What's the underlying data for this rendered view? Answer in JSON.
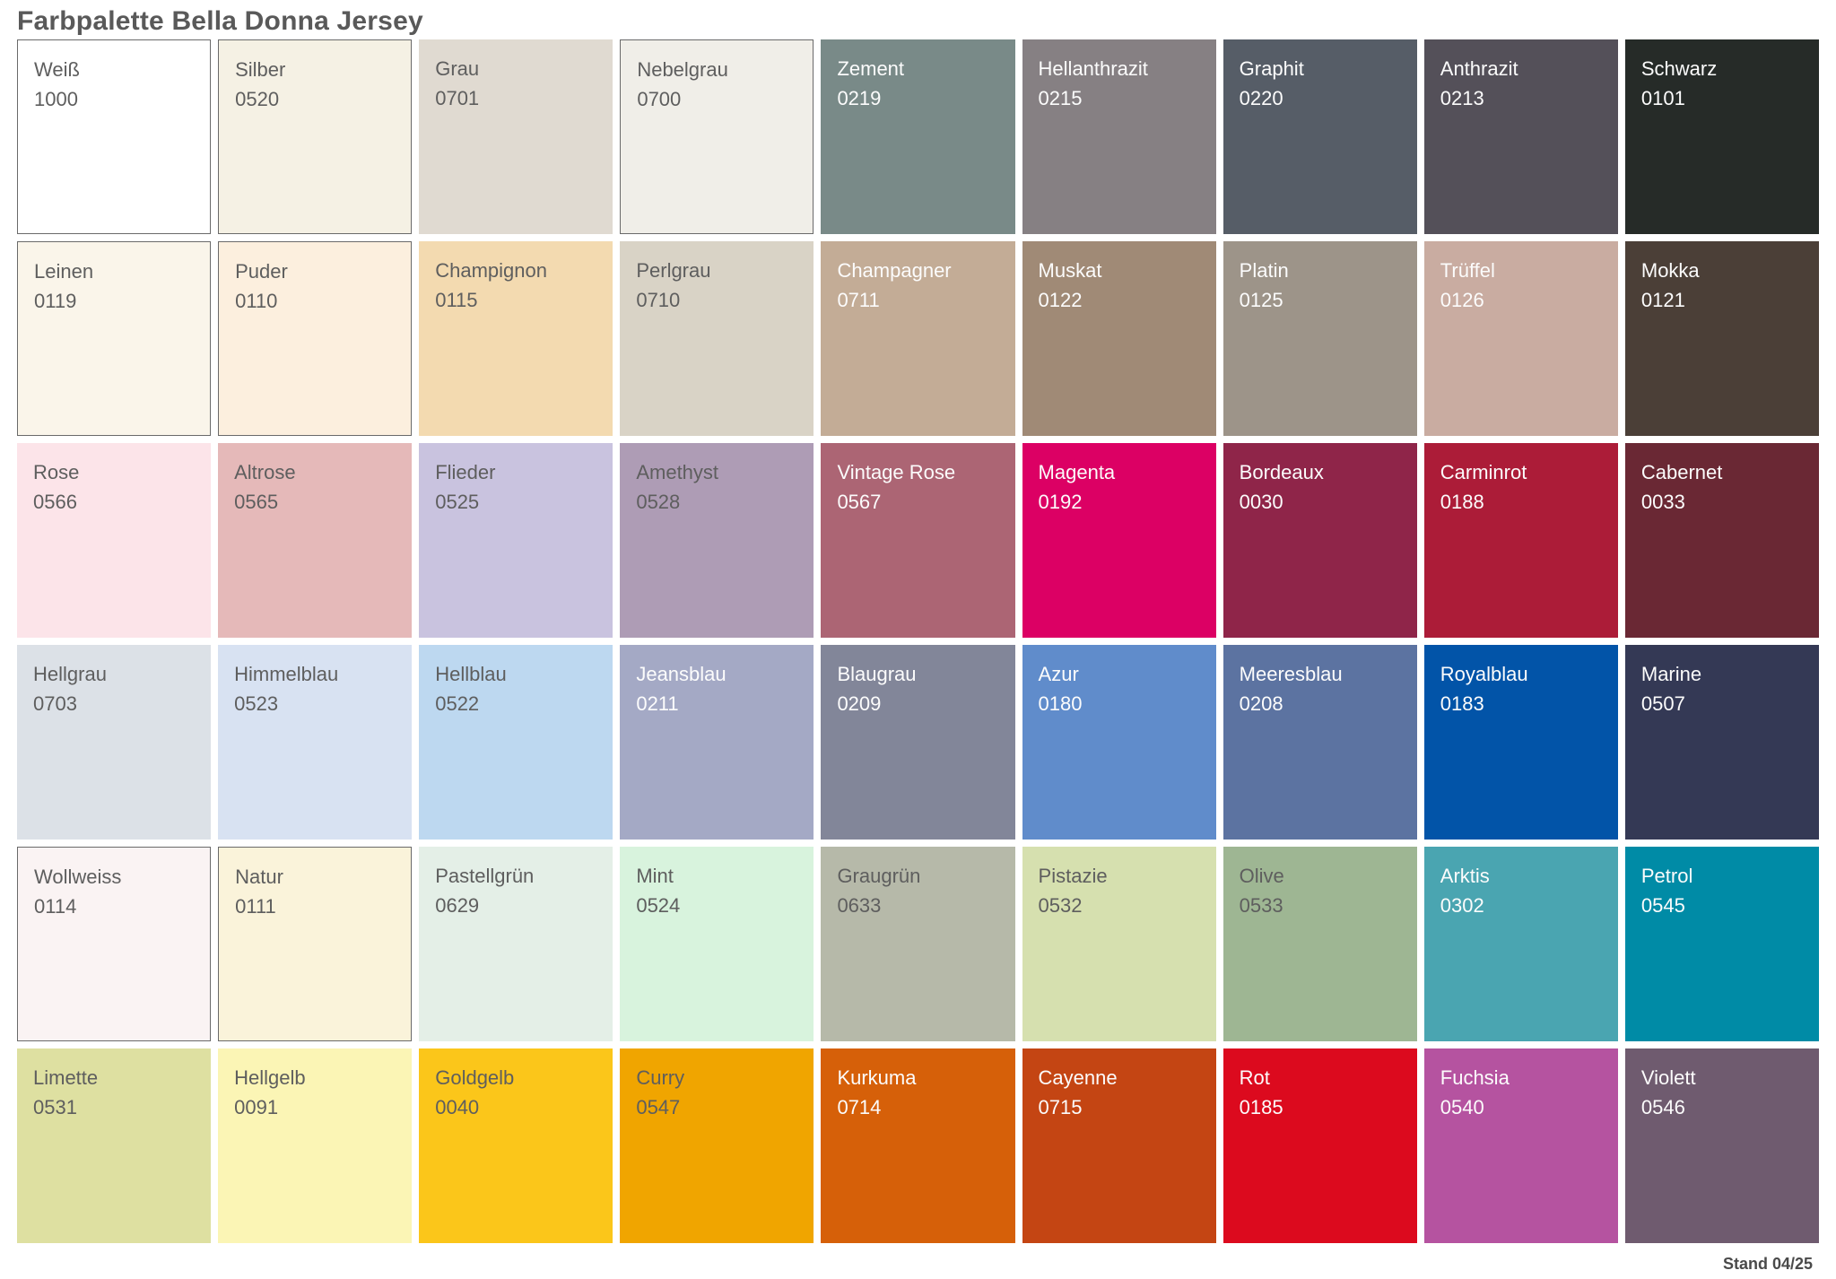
{
  "title": "Farbpalette Bella Donna Jersey",
  "footer": "Stand 04/25",
  "palette": {
    "columns": 9,
    "rows": 6,
    "label_dark_color": "#5E5E5E",
    "label_light_color": "#FCFCFC",
    "border_color": "#6A6A6A"
  },
  "swatches": [
    {
      "name": "Weiß",
      "code": "1000",
      "color": "#FFFFFF",
      "label": "dark",
      "border": true
    },
    {
      "name": "Silber",
      "code": "0520",
      "color": "#F5F1E4",
      "label": "dark",
      "border": true
    },
    {
      "name": "Grau",
      "code": "0701",
      "color": "#E0DAD1",
      "label": "dark",
      "border": false
    },
    {
      "name": "Nebelgrau",
      "code": "0700",
      "color": "#F0EEE8",
      "label": "dark",
      "border": true
    },
    {
      "name": "Zement",
      "code": "0219",
      "color": "#798A88",
      "label": "light",
      "border": false
    },
    {
      "name": "Hellanthrazit",
      "code": "0215",
      "color": "#868083",
      "label": "light",
      "border": false
    },
    {
      "name": "Graphit",
      "code": "0220",
      "color": "#565D67",
      "label": "light",
      "border": false
    },
    {
      "name": "Anthrazit",
      "code": "0213",
      "color": "#545059",
      "label": "light",
      "border": false
    },
    {
      "name": "Schwarz",
      "code": "0101",
      "color": "#262B28",
      "label": "light",
      "border": false
    },
    {
      "name": "Leinen",
      "code": "0119",
      "color": "#FAF5EA",
      "label": "dark",
      "border": true
    },
    {
      "name": "Puder",
      "code": "0110",
      "color": "#FCEFDE",
      "label": "dark",
      "border": true
    },
    {
      "name": "Champignon",
      "code": "0115",
      "color": "#F3DAB0",
      "label": "dark",
      "border": false
    },
    {
      "name": "Perlgrau",
      "code": "0710",
      "color": "#D9D3C6",
      "label": "dark",
      "border": false
    },
    {
      "name": "Champagner",
      "code": "0711",
      "color": "#C3AC96",
      "label": "light",
      "border": false
    },
    {
      "name": "Muskat",
      "code": "0122",
      "color": "#A08A76",
      "label": "light",
      "border": false
    },
    {
      "name": "Platin",
      "code": "0125",
      "color": "#9D9489",
      "label": "light",
      "border": false
    },
    {
      "name": "Trüffel",
      "code": "0126",
      "color": "#C9ACA1",
      "label": "light",
      "border": false
    },
    {
      "name": "Mokka",
      "code": "0121",
      "color": "#4B3F37",
      "label": "light",
      "border": false
    },
    {
      "name": "Rose",
      "code": "0566",
      "color": "#FCE4E9",
      "label": "dark",
      "border": false
    },
    {
      "name": "Altrose",
      "code": "0565",
      "color": "#E5B9B9",
      "label": "dark",
      "border": false
    },
    {
      "name": "Flieder",
      "code": "0525",
      "color": "#C9C3DF",
      "label": "dark",
      "border": false
    },
    {
      "name": "Amethyst",
      "code": "0528",
      "color": "#AE9CB5",
      "label": "dark",
      "border": false
    },
    {
      "name": "Vintage Rose",
      "code": "0567",
      "color": "#AC6574",
      "label": "light",
      "border": false
    },
    {
      "name": "Magenta",
      "code": "0192",
      "color": "#DC0064",
      "label": "light",
      "border": false
    },
    {
      "name": "Bordeaux",
      "code": "0030",
      "color": "#8F2549",
      "label": "light",
      "border": false
    },
    {
      "name": "Carminrot",
      "code": "0188",
      "color": "#AC1C38",
      "label": "light",
      "border": false
    },
    {
      "name": "Cabernet",
      "code": "0033",
      "color": "#6A2834",
      "label": "light",
      "border": false
    },
    {
      "name": "Hellgrau",
      "code": "0703",
      "color": "#DCE1E7",
      "label": "dark",
      "border": false
    },
    {
      "name": "Himmelblau",
      "code": "0523",
      "color": "#D8E2F2",
      "label": "dark",
      "border": false
    },
    {
      "name": "Hellblau",
      "code": "0522",
      "color": "#BDD8F0",
      "label": "dark",
      "border": false
    },
    {
      "name": "Jeansblau",
      "code": "0211",
      "color": "#A4A9C5",
      "label": "light",
      "border": false
    },
    {
      "name": "Blaugrau",
      "code": "0209",
      "color": "#828699",
      "label": "light",
      "border": false
    },
    {
      "name": "Azur",
      "code": "0180",
      "color": "#608CCB",
      "label": "light",
      "border": false
    },
    {
      "name": "Meeresblau",
      "code": "0208",
      "color": "#5C73A1",
      "label": "light",
      "border": false
    },
    {
      "name": "Royalblau",
      "code": "0183",
      "color": "#0254A8",
      "label": "light",
      "border": false
    },
    {
      "name": "Marine",
      "code": "0507",
      "color": "#343955",
      "label": "light",
      "border": false
    },
    {
      "name": "Wollweiss",
      "code": "0114",
      "color": "#FAF3F3",
      "label": "dark",
      "border": true
    },
    {
      "name": "Natur",
      "code": "0111",
      "color": "#FAF3DA",
      "label": "dark",
      "border": true
    },
    {
      "name": "Pastellgrün",
      "code": "0629",
      "color": "#E4EFE7",
      "label": "dark",
      "border": false
    },
    {
      "name": "Mint",
      "code": "0524",
      "color": "#D8F3DD",
      "label": "dark",
      "border": false
    },
    {
      "name": "Graugrün",
      "code": "0633",
      "color": "#B6B9A9",
      "label": "dark",
      "border": false
    },
    {
      "name": "Pistazie",
      "code": "0532",
      "color": "#D6E0AF",
      "label": "dark",
      "border": false
    },
    {
      "name": "Olive",
      "code": "0533",
      "color": "#9EB693",
      "label": "dark",
      "border": false
    },
    {
      "name": "Arktis",
      "code": "0302",
      "color": "#4AA5B1",
      "label": "light",
      "border": false
    },
    {
      "name": "Petrol",
      "code": "0545",
      "color": "#008BA6",
      "label": "light",
      "border": false
    },
    {
      "name": "Limette",
      "code": "0531",
      "color": "#DEE0A1",
      "label": "dark",
      "border": false
    },
    {
      "name": "Hellgelb",
      "code": "0091",
      "color": "#FBF5B5",
      "label": "dark",
      "border": false
    },
    {
      "name": "Goldgelb",
      "code": "0040",
      "color": "#FBC61A",
      "label": "dark",
      "border": false
    },
    {
      "name": "Curry",
      "code": "0547",
      "color": "#F0A500",
      "label": "dark",
      "border": false
    },
    {
      "name": "Kurkuma",
      "code": "0714",
      "color": "#D66009",
      "label": "light",
      "border": false
    },
    {
      "name": "Cayenne",
      "code": "0715",
      "color": "#C44513",
      "label": "light",
      "border": false
    },
    {
      "name": "Rot",
      "code": "0185",
      "color": "#DC0A1E",
      "label": "light",
      "border": false
    },
    {
      "name": "Fuchsia",
      "code": "0540",
      "color": "#B553A0",
      "label": "light",
      "border": false
    },
    {
      "name": "Violett",
      "code": "0546",
      "color": "#6F5B6F",
      "label": "light",
      "border": false
    }
  ]
}
